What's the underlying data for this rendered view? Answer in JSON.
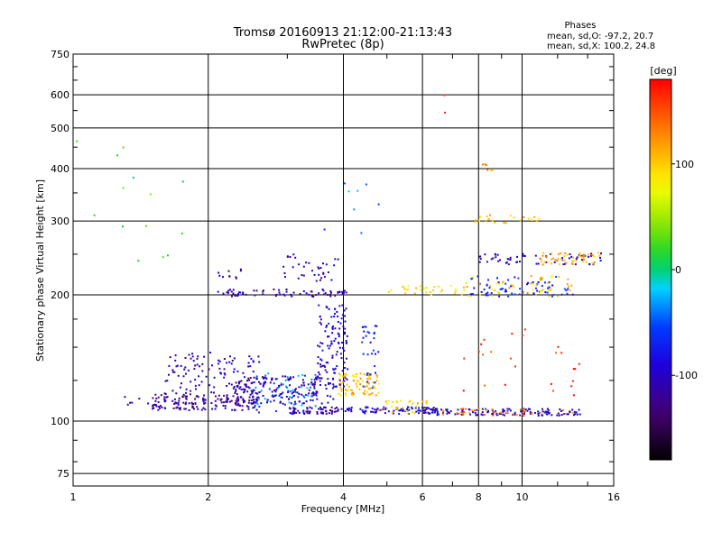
{
  "chart_data": {
    "type": "scatter",
    "title_line1": "Tromsø 20160913 21:12:00-21:13:43",
    "title_line2": "RwPretec (8p)",
    "stats": {
      "heading": "Phases",
      "line1": "mean, sd,O: -97.2, 20.7",
      "line2": "mean, sd,X: 100.2, 24.8"
    },
    "xlabel": "Frequency [MHz]",
    "ylabel": "Stationary phase Virtual Height [km]",
    "x_scale": "log",
    "y_scale": "log",
    "xlim": [
      1,
      16
    ],
    "ylim": [
      70,
      750
    ],
    "x_ticks": [
      {
        "value": 1,
        "label": "1"
      },
      {
        "value": 2,
        "label": "2"
      },
      {
        "value": 4,
        "label": "4"
      },
      {
        "value": 6,
        "label": "6"
      },
      {
        "value": 8,
        "label": "8"
      },
      {
        "value": 10,
        "label": "10"
      },
      {
        "value": 16,
        "label": "16"
      }
    ],
    "y_ticks": [
      {
        "value": 75,
        "label": "75"
      },
      {
        "value": 100,
        "label": "100"
      },
      {
        "value": 200,
        "label": "200"
      },
      {
        "value": 300,
        "label": "300"
      },
      {
        "value": 400,
        "label": "400"
      },
      {
        "value": 500,
        "label": "500"
      },
      {
        "value": 600,
        "label": "600"
      },
      {
        "value": 750,
        "label": "750"
      }
    ],
    "grid": true,
    "colorbar": {
      "label": "[deg]",
      "range": [
        -180,
        180
      ],
      "ticks": [
        {
          "value": 100,
          "label": "100"
        },
        {
          "value": 0,
          "label": "0"
        },
        {
          "value": -100,
          "label": "-100"
        }
      ]
    },
    "point_groups": [
      {
        "f_range": [
          1.25,
          1.6
        ],
        "h_range": [
          108,
          115
        ],
        "phase": -110,
        "count": 12
      },
      {
        "f_range": [
          1.5,
          2.6
        ],
        "h_range": [
          106,
          116
        ],
        "phase": -120,
        "count": 160
      },
      {
        "f_range": [
          1.6,
          2.6
        ],
        "h_range": [
          116,
          146
        ],
        "phase": -105,
        "count": 110
      },
      {
        "f_range": [
          2.5,
          3.5
        ],
        "h_range": [
          104,
          130
        ],
        "phase": -40,
        "count": 70
      },
      {
        "f_range": [
          2.3,
          3.8
        ],
        "h_range": [
          110,
          128
        ],
        "phase": -110,
        "count": 150
      },
      {
        "f_range": [
          3.0,
          3.9
        ],
        "h_range": [
          104,
          108
        ],
        "phase": -115,
        "count": 60
      },
      {
        "f_range": [
          3.5,
          4.1
        ],
        "h_range": [
          120,
          190
        ],
        "phase": -95,
        "count": 120
      },
      {
        "f_range": [
          3.9,
          4.8
        ],
        "h_range": [
          115,
          130
        ],
        "phase": 105,
        "count": 80
      },
      {
        "f_range": [
          4.4,
          4.8
        ],
        "h_range": [
          118,
          170
        ],
        "phase": -75,
        "count": 30
      },
      {
        "f_range": [
          3.9,
          6.5
        ],
        "h_range": [
          104,
          108
        ],
        "phase": -90,
        "count": 90
      },
      {
        "f_range": [
          4.8,
          6.2
        ],
        "h_range": [
          104,
          112
        ],
        "phase": 95,
        "count": 30
      },
      {
        "f_range": [
          6.0,
          13.5
        ],
        "h_range": [
          103,
          107
        ],
        "phase": -100,
        "count": 130
      },
      {
        "f_range": [
          6.5,
          13.5
        ],
        "h_range": [
          103,
          107
        ],
        "phase": 130,
        "count": 40
      },
      {
        "f_range": [
          2.1,
          2.4
        ],
        "h_range": [
          218,
          230
        ],
        "phase": -115,
        "count": 10
      },
      {
        "f_range": [
          2.1,
          4.1
        ],
        "h_range": [
          198,
          206
        ],
        "phase": -112,
        "count": 70
      },
      {
        "f_range": [
          2.9,
          3.9
        ],
        "h_range": [
          215,
          250
        ],
        "phase": -108,
        "count": 35
      },
      {
        "f_range": [
          5.0,
          7.5
        ],
        "h_range": [
          200,
          210
        ],
        "phase": 90,
        "count": 30
      },
      {
        "f_range": [
          7.5,
          13.0
        ],
        "h_range": [
          198,
          222
        ],
        "phase": -70,
        "count": 70
      },
      {
        "f_range": [
          7.5,
          13.0
        ],
        "h_range": [
          198,
          222
        ],
        "phase": 100,
        "count": 50
      },
      {
        "f_range": [
          8.0,
          15.0
        ],
        "h_range": [
          236,
          252
        ],
        "phase": -105,
        "count": 60
      },
      {
        "f_range": [
          11.0,
          15.0
        ],
        "h_range": [
          236,
          252
        ],
        "phase": 115,
        "count": 50
      },
      {
        "f_range": [
          7.8,
          11.0
        ],
        "h_range": [
          296,
          310
        ],
        "phase": 105,
        "count": 25
      },
      {
        "f_range": [
          8.0,
          9.0
        ],
        "h_range": [
          395,
          410
        ],
        "phase": 125,
        "count": 6
      },
      {
        "f_range": [
          1.0,
          1.8
        ],
        "h_range": [
          230,
          520
        ],
        "phase": 20,
        "count": 14
      },
      {
        "f_range": [
          3.6,
          4.9
        ],
        "h_range": [
          280,
          380
        ],
        "phase": -40,
        "count": 8
      },
      {
        "f_range": [
          7.0,
          13.5
        ],
        "h_range": [
          115,
          170
        ],
        "phase": 160,
        "count": 25
      },
      {
        "f_range": [
          6.6,
          6.8
        ],
        "h_range": [
          500,
          610
        ],
        "phase": 165,
        "count": 2
      }
    ]
  }
}
